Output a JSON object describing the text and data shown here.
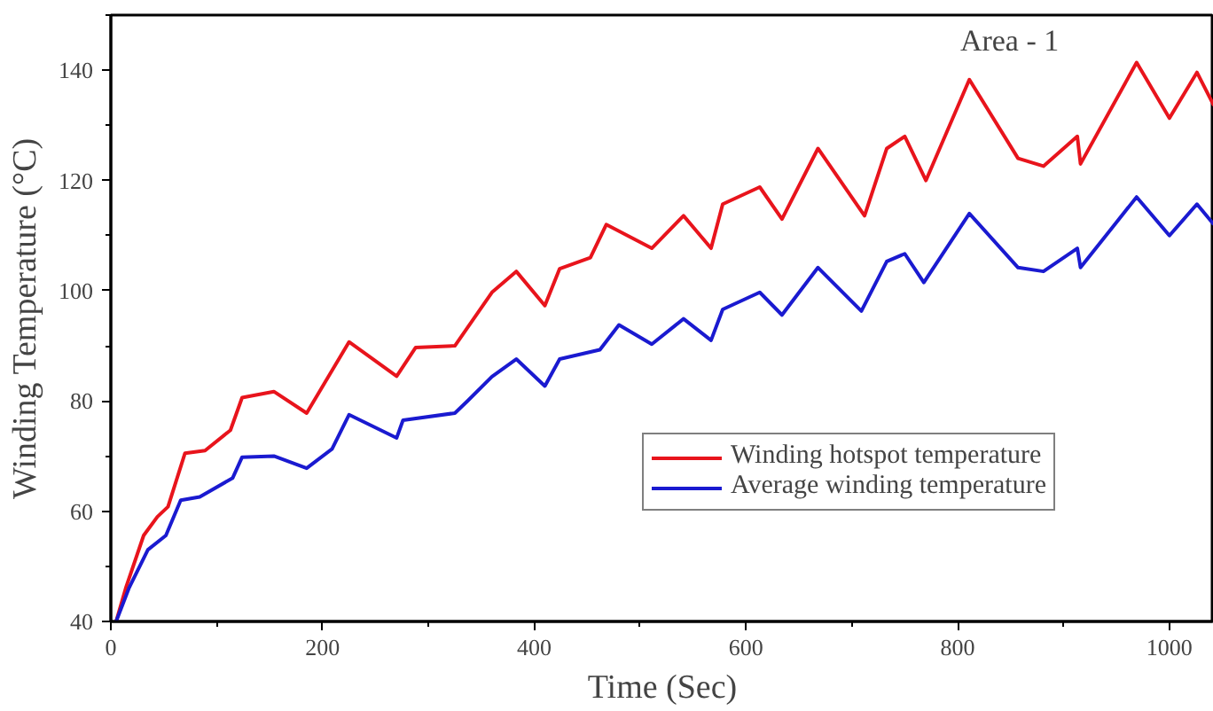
{
  "chart_data": {
    "type": "line",
    "xlabel": "Time (Sec)",
    "ylabel": "Winding Temperature (°C)",
    "annotations": [
      "Area - 1"
    ],
    "xlim": [
      0,
      1042
    ],
    "ylim": [
      40,
      150
    ],
    "xticks": [
      0,
      200,
      400,
      600,
      800,
      1000
    ],
    "yticks": [
      40,
      60,
      80,
      100,
      120,
      140
    ],
    "grid": false,
    "legend": "right",
    "marker": "none",
    "line_style": "solid",
    "series": [
      {
        "name": "Winding hotspot temperature",
        "color": "#e8141c",
        "x": [
          5,
          14,
          31,
          44,
          54,
          70,
          89,
          113,
          124,
          154,
          185,
          225,
          270,
          288,
          325,
          360,
          383,
          410,
          424,
          453,
          468,
          511,
          541,
          567,
          578,
          613,
          634,
          668,
          712,
          733,
          750,
          770,
          811,
          857,
          881,
          913,
          916,
          969,
          1000,
          1026,
          1042
        ],
        "values": [
          40,
          46,
          55.6,
          59,
          60.8,
          70.5,
          71,
          74.7,
          80.6,
          81.7,
          77.8,
          90.7,
          84.5,
          89.7,
          90,
          99.7,
          103.5,
          97.3,
          104,
          106,
          112,
          107.7,
          113.6,
          107.7,
          115.7,
          118.8,
          113,
          125.8,
          113.6,
          125.8,
          128,
          120,
          138.3,
          124,
          122.6,
          128,
          123,
          141.4,
          131.3,
          139.6,
          133.6
        ]
      },
      {
        "name": "Average winding temperature",
        "color": "#1a1ad0",
        "x": [
          5,
          17,
          35,
          52,
          66,
          84,
          115,
          124,
          154,
          185,
          209,
          225,
          270,
          276,
          325,
          337,
          360,
          383,
          410,
          424,
          462,
          480,
          511,
          541,
          567,
          578,
          613,
          634,
          668,
          709,
          733,
          750,
          768,
          811,
          857,
          881,
          913,
          916,
          969,
          1000,
          1026,
          1042
        ],
        "values": [
          40,
          46,
          53,
          55.6,
          62,
          62.6,
          66,
          69.8,
          70,
          67.8,
          71.3,
          77.5,
          73.3,
          76.5,
          77.8,
          80,
          84.4,
          87.6,
          82.7,
          87.6,
          89.3,
          93.8,
          90.3,
          94.9,
          91,
          96.6,
          99.7,
          95.6,
          104.2,
          96.3,
          105.3,
          106.7,
          101.5,
          114,
          104.2,
          103.5,
          107.7,
          104.2,
          117,
          110,
          115.7,
          112
        ]
      }
    ]
  }
}
